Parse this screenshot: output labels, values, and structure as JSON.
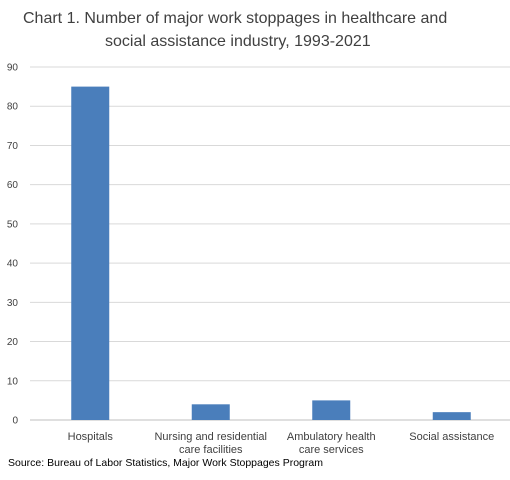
{
  "chart_data": {
    "type": "bar",
    "title_line1": "Chart 1. Number of major work stoppages in healthcare and",
    "title_line2": "social assistance industry, 1993-2021",
    "categories": [
      "Hospitals",
      "Nursing and residential care facilities",
      "Ambulatory health care services",
      "Social assistance"
    ],
    "category_lines": [
      [
        "Hospitals"
      ],
      [
        "Nursing and residential",
        "care facilities"
      ],
      [
        "Ambulatory health",
        "care services"
      ],
      [
        "Social assistance"
      ]
    ],
    "values": [
      85,
      4,
      5,
      2
    ],
    "ylim": [
      0,
      90
    ],
    "yticks": [
      0,
      10,
      20,
      30,
      40,
      50,
      60,
      70,
      80,
      90
    ],
    "xlabel": "",
    "ylabel": "",
    "grid": true,
    "bar_color": "#4a7ebb",
    "source": "Source: Bureau of Labor Statistics, Major Work Stoppages Program"
  }
}
